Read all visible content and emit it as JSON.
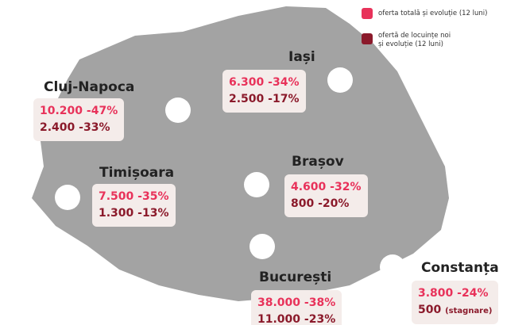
{
  "legend": {
    "total": "oferta totală și evoluție (12 luni)",
    "new": [
      "ofertă de locuințe noi",
      "și evoluție (12 luni)"
    ]
  },
  "cities": [
    {
      "name": "Iași",
      "total_value": "6.300",
      "total_change": "-34%",
      "new_value": "2.500",
      "new_change": "-17%"
    },
    {
      "name": "Cluj-Napoca",
      "total_value": "10.200",
      "total_change": "-47%",
      "new_value": "2.400",
      "new_change": "-33%"
    },
    {
      "name": "Timișoara",
      "total_value": "7.500",
      "total_change": "-35%",
      "new_value": "1.300",
      "new_change": "-13%"
    },
    {
      "name": "Brașov",
      "total_value": "4.600",
      "total_change": "-32%",
      "new_value": "800",
      "new_change": "-20%"
    },
    {
      "name": "București",
      "total_value": "38.000",
      "total_change": "-38%",
      "new_value": "11.000",
      "new_change": "-23%"
    },
    {
      "name": "Constanța",
      "total_value": "3.800",
      "total_change": "-24%",
      "new_value": "500",
      "new_change": "(stagnare)"
    }
  ]
}
